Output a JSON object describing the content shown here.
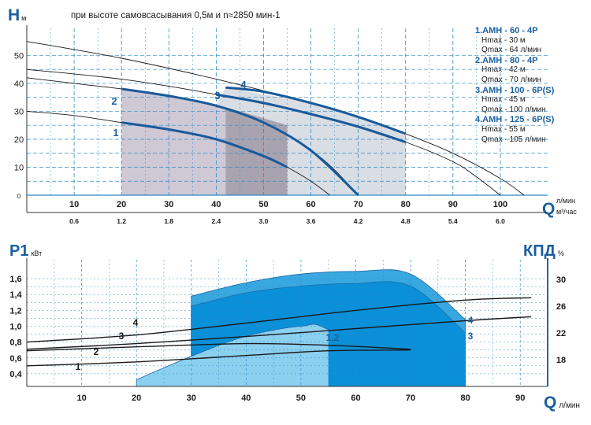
{
  "header": {
    "top_ylabel": "H",
    "top_ylabel_unit": "м",
    "subtitle": "при высоте самовсасывания 0,5м и n≈2850 мин-1",
    "q_label": "Q",
    "q_unit_lmin": "л/мин",
    "q_unit_m3h": "м³/час",
    "p_label": "P1",
    "p_unit": "кВт",
    "kpd_label": "КПД",
    "kpd_unit": "%",
    "bottom_q_label": "Q",
    "bottom_q_unit": "л/мин"
  },
  "legend": {
    "models": [
      {
        "name": "1.АМН - 60 - 4Р",
        "lines": [
          "Hmax - 30 м",
          "Qmax - 64 л/мин"
        ]
      },
      {
        "name": "2.АМН - 80 - 4Р",
        "lines": [
          "Hmax - 42 м",
          "Qmax - 70 л/мин"
        ]
      },
      {
        "name": "3.АМН - 100 - 6Р(S)",
        "lines": [
          "Hmax - 45 м",
          "Qmax - 100 л/мин"
        ]
      },
      {
        "name": "4.АМН - 125 - 6Р(S)",
        "lines": [
          "Hmax - 55 м",
          "Qmax - 105 л/мин"
        ]
      }
    ]
  },
  "colors": {
    "grid": "#2a8cc8",
    "curve_thin": "#1a1a1a",
    "curve_bold": "#1a5a9a",
    "label": "#1a5fa0",
    "region_light": "#d9dde4",
    "region_dark": "#a9a3b0",
    "p_fill_light": "#8cd0f0",
    "p_fill_mid": "#3aa8e0",
    "p_fill_dark": "#0a90d8"
  },
  "chart_data": [
    {
      "type": "line",
      "title": "",
      "xlabel": "Q л/мин",
      "ylabel": "H м",
      "xlim": [
        0,
        110
      ],
      "ylim": [
        0,
        58
      ],
      "xticks": [
        "10",
        "20",
        "30",
        "40",
        "50",
        "60",
        "70",
        "80",
        "90",
        "100"
      ],
      "xticks_secondary": [
        "0.6",
        "1.2",
        "1.8",
        "2.4",
        "3.0",
        "3.6",
        "4.2",
        "4.8",
        "5.4",
        "6.0"
      ],
      "yticks": [
        "0",
        "10",
        "20",
        "30",
        "40",
        "50"
      ],
      "grid": true,
      "series": [
        {
          "name": "1",
          "x": [
            0,
            10,
            20,
            30,
            40,
            50,
            55,
            60,
            64
          ],
          "y": [
            30,
            28.5,
            26,
            23.5,
            20,
            14,
            10,
            5,
            0
          ]
        },
        {
          "name": "2",
          "x": [
            0,
            10,
            20,
            30,
            40,
            50,
            60,
            65,
            70
          ],
          "y": [
            42,
            40,
            38,
            35.5,
            32,
            26,
            16,
            9,
            0
          ]
        },
        {
          "name": "3",
          "x": [
            0,
            20,
            40,
            60,
            70,
            80,
            90,
            95,
            100
          ],
          "y": [
            45,
            41.5,
            36,
            29,
            24.5,
            19,
            12,
            6.5,
            0
          ]
        },
        {
          "name": "4",
          "x": [
            0,
            20,
            40,
            60,
            70,
            80,
            90,
            100,
            105
          ],
          "y": [
            55,
            49,
            41.5,
            33,
            28,
            22,
            15,
            6,
            0
          ]
        }
      ],
      "bold_segments": [
        {
          "name": "1",
          "x": [
            20,
            30,
            40,
            50,
            55
          ],
          "y": [
            26,
            23.5,
            20,
            14,
            10
          ]
        },
        {
          "name": "2",
          "x": [
            20,
            30,
            40,
            50,
            60,
            70
          ],
          "y": [
            38,
            35.5,
            32,
            26,
            16,
            0
          ]
        },
        {
          "name": "3",
          "x": [
            40,
            50,
            60,
            70,
            80
          ],
          "y": [
            36,
            33,
            29,
            24.5,
            19
          ]
        },
        {
          "name": "4",
          "x": [
            42,
            50,
            60,
            70,
            80
          ],
          "y": [
            38.5,
            37,
            33,
            28,
            22
          ]
        }
      ],
      "annotations": [
        "1",
        "2",
        "3",
        "4"
      ]
    },
    {
      "type": "line",
      "title": "",
      "xlabel": "Q л/мин",
      "ylabel": "P1 кВт",
      "ylabel_right": "КПД %",
      "xlim": [
        0,
        95
      ],
      "ylim": [
        0.24,
        1.76
      ],
      "ylim_right": [
        14,
        32
      ],
      "xticks": [
        "10",
        "20",
        "30",
        "40",
        "50",
        "60",
        "70",
        "80",
        "90"
      ],
      "yticks": [
        "0,4",
        "0,6",
        "0,8",
        "1,0",
        "1,2",
        "1,4",
        "1,6"
      ],
      "yticks_right": [
        "18",
        "22",
        "26",
        "30"
      ],
      "grid": true,
      "series": [
        {
          "name": "1",
          "x": [
            0,
            20,
            40,
            55,
            70
          ],
          "y": [
            0.5,
            0.55,
            0.63,
            0.69,
            0.7
          ]
        },
        {
          "name": "2",
          "x": [
            0,
            20,
            40,
            55,
            70
          ],
          "y": [
            0.69,
            0.74,
            0.78,
            0.76,
            0.71
          ]
        },
        {
          "name": "3",
          "x": [
            0,
            20,
            40,
            60,
            80,
            92
          ],
          "y": [
            0.71,
            0.78,
            0.87,
            0.97,
            1.07,
            1.12
          ]
        },
        {
          "name": "4",
          "x": [
            0,
            20,
            40,
            60,
            80,
            92
          ],
          "y": [
            0.8,
            0.89,
            1.04,
            1.2,
            1.33,
            1.36
          ]
        }
      ],
      "efficiency_regions": [
        {
          "name": "1,2",
          "q": [
            20,
            30,
            40,
            50,
            55,
            70
          ],
          "kpd": [
            15,
            18.5,
            21.5,
            23,
            22.5,
            15
          ]
        },
        {
          "name": "3",
          "q": [
            30,
            40,
            50,
            60,
            70,
            80
          ],
          "kpd": [
            26,
            28,
            29,
            29.4,
            29,
            22
          ]
        },
        {
          "name": "4",
          "q": [
            30,
            40,
            50,
            60,
            70,
            80
          ],
          "kpd": [
            27.5,
            29.5,
            30.8,
            31.2,
            30.8,
            24
          ]
        }
      ],
      "region_labels": [
        "1,2",
        "3",
        "4"
      ],
      "annotations": [
        "1",
        "2",
        "3",
        "4"
      ]
    }
  ]
}
